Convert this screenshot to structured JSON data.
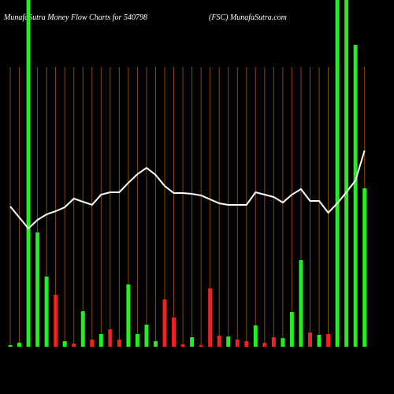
{
  "chart_data": {
    "type": "bar",
    "title": "MunafaSutra  Money Flow  Charts for 540798",
    "subtitle": "(FSC) MunafaSutra.com",
    "values": [
      2,
      5,
      440,
      145,
      89,
      66,
      7,
      4,
      45,
      9,
      16,
      22,
      9,
      79,
      16,
      28,
      7,
      60,
      37,
      3,
      12,
      2,
      74,
      14,
      13,
      9,
      7,
      27,
      5,
      12,
      11,
      44,
      110,
      18,
      15,
      16,
      440,
      440,
      383,
      201
    ],
    "colors": [
      "#22ee22",
      "#22ee22",
      "#22ee22",
      "#22ee22",
      "#22ee22",
      "#ee2222",
      "#22ee22",
      "#ee2222",
      "#22ee22",
      "#ee2222",
      "#22ee22",
      "#ee2222",
      "#ee2222",
      "#22ee22",
      "#22ee22",
      "#22ee22",
      "#22ee22",
      "#ee2222",
      "#ee2222",
      "#ee2222",
      "#22ee22",
      "#ee2222",
      "#ee2222",
      "#ee2222",
      "#22ee22",
      "#ee2222",
      "#ee2222",
      "#22ee22",
      "#ee2222",
      "#ee2222",
      "#22ee22",
      "#22ee22",
      "#22ee22",
      "#ee2222",
      "#22ee22",
      "#ee2222",
      "#22ee22",
      "#22ee22",
      "#22ee22",
      "#22ee22"
    ],
    "line_values": [
      178,
      164,
      150,
      161,
      168,
      172,
      177,
      188,
      184,
      180,
      193,
      196,
      196,
      208,
      219,
      227,
      218,
      204,
      195,
      195,
      194,
      192,
      187,
      182,
      180,
      180,
      180,
      196,
      193,
      190,
      183,
      193,
      200,
      185,
      185,
      170,
      182,
      196,
      211,
      249
    ],
    "line_color": "#ffffff",
    "ylim": [
      0,
      440
    ]
  }
}
